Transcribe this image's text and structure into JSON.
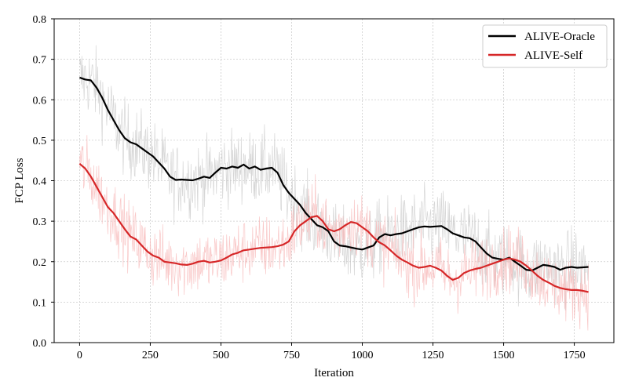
{
  "chart_data": {
    "type": "line",
    "title": "",
    "xlabel": "Iteration",
    "ylabel": "FCP Loss",
    "xlim": [
      -90,
      1890
    ],
    "ylim": [
      0,
      0.8
    ],
    "xticks": [
      0,
      250,
      500,
      750,
      1000,
      1250,
      1500,
      1750
    ],
    "yticks": [
      0.0,
      0.1,
      0.2,
      0.3,
      0.4,
      0.5,
      0.6,
      0.7,
      0.8
    ],
    "ytick_labels": [
      "0.0",
      "0.1",
      "0.2",
      "0.3",
      "0.4",
      "0.5",
      "0.6",
      "0.7",
      "0.8"
    ],
    "grid": true,
    "legend_position": "top-right",
    "series": [
      {
        "name": "ALIVE-Oracle",
        "color": "#000000",
        "raw_color": "#c8c8c8",
        "smoothed": [
          [
            0,
            0.655
          ],
          [
            20,
            0.65
          ],
          [
            40,
            0.648
          ],
          [
            60,
            0.63
          ],
          [
            80,
            0.605
          ],
          [
            100,
            0.575
          ],
          [
            120,
            0.55
          ],
          [
            140,
            0.525
          ],
          [
            160,
            0.505
          ],
          [
            180,
            0.495
          ],
          [
            200,
            0.49
          ],
          [
            220,
            0.48
          ],
          [
            240,
            0.47
          ],
          [
            260,
            0.46
          ],
          [
            280,
            0.445
          ],
          [
            300,
            0.43
          ],
          [
            320,
            0.41
          ],
          [
            340,
            0.402
          ],
          [
            360,
            0.403
          ],
          [
            380,
            0.402
          ],
          [
            400,
            0.401
          ],
          [
            420,
            0.405
          ],
          [
            440,
            0.41
          ],
          [
            460,
            0.407
          ],
          [
            480,
            0.42
          ],
          [
            500,
            0.432
          ],
          [
            520,
            0.43
          ],
          [
            540,
            0.435
          ],
          [
            560,
            0.432
          ],
          [
            580,
            0.44
          ],
          [
            600,
            0.43
          ],
          [
            620,
            0.435
          ],
          [
            640,
            0.427
          ],
          [
            660,
            0.43
          ],
          [
            680,
            0.432
          ],
          [
            700,
            0.42
          ],
          [
            720,
            0.39
          ],
          [
            740,
            0.37
          ],
          [
            760,
            0.355
          ],
          [
            780,
            0.34
          ],
          [
            800,
            0.32
          ],
          [
            820,
            0.305
          ],
          [
            840,
            0.29
          ],
          [
            860,
            0.285
          ],
          [
            880,
            0.275
          ],
          [
            900,
            0.25
          ],
          [
            920,
            0.24
          ],
          [
            940,
            0.238
          ],
          [
            960,
            0.235
          ],
          [
            980,
            0.232
          ],
          [
            1000,
            0.23
          ],
          [
            1020,
            0.235
          ],
          [
            1040,
            0.24
          ],
          [
            1060,
            0.26
          ],
          [
            1080,
            0.268
          ],
          [
            1100,
            0.265
          ],
          [
            1120,
            0.268
          ],
          [
            1140,
            0.27
          ],
          [
            1160,
            0.275
          ],
          [
            1180,
            0.28
          ],
          [
            1200,
            0.285
          ],
          [
            1220,
            0.287
          ],
          [
            1240,
            0.286
          ],
          [
            1260,
            0.287
          ],
          [
            1280,
            0.288
          ],
          [
            1300,
            0.28
          ],
          [
            1320,
            0.27
          ],
          [
            1340,
            0.265
          ],
          [
            1360,
            0.26
          ],
          [
            1380,
            0.258
          ],
          [
            1400,
            0.25
          ],
          [
            1420,
            0.235
          ],
          [
            1440,
            0.22
          ],
          [
            1460,
            0.21
          ],
          [
            1480,
            0.207
          ],
          [
            1500,
            0.205
          ],
          [
            1520,
            0.21
          ],
          [
            1540,
            0.2
          ],
          [
            1560,
            0.19
          ],
          [
            1580,
            0.18
          ],
          [
            1600,
            0.178
          ],
          [
            1620,
            0.185
          ],
          [
            1640,
            0.192
          ],
          [
            1660,
            0.19
          ],
          [
            1680,
            0.187
          ],
          [
            1700,
            0.18
          ],
          [
            1720,
            0.185
          ],
          [
            1740,
            0.187
          ],
          [
            1760,
            0.185
          ],
          [
            1780,
            0.186
          ],
          [
            1800,
            0.187
          ]
        ]
      },
      {
        "name": "ALIVE-Self",
        "color": "#d62728",
        "raw_color": "#f7b6b6",
        "smoothed": [
          [
            0,
            0.442
          ],
          [
            20,
            0.43
          ],
          [
            40,
            0.41
          ],
          [
            60,
            0.385
          ],
          [
            80,
            0.36
          ],
          [
            100,
            0.335
          ],
          [
            120,
            0.32
          ],
          [
            140,
            0.3
          ],
          [
            160,
            0.28
          ],
          [
            180,
            0.262
          ],
          [
            200,
            0.255
          ],
          [
            220,
            0.24
          ],
          [
            240,
            0.225
          ],
          [
            260,
            0.215
          ],
          [
            280,
            0.21
          ],
          [
            300,
            0.2
          ],
          [
            320,
            0.198
          ],
          [
            340,
            0.196
          ],
          [
            360,
            0.193
          ],
          [
            380,
            0.192
          ],
          [
            400,
            0.195
          ],
          [
            420,
            0.2
          ],
          [
            440,
            0.202
          ],
          [
            460,
            0.198
          ],
          [
            480,
            0.2
          ],
          [
            500,
            0.203
          ],
          [
            520,
            0.21
          ],
          [
            540,
            0.218
          ],
          [
            560,
            0.222
          ],
          [
            580,
            0.228
          ],
          [
            600,
            0.23
          ],
          [
            620,
            0.232
          ],
          [
            640,
            0.234
          ],
          [
            660,
            0.235
          ],
          [
            680,
            0.236
          ],
          [
            700,
            0.238
          ],
          [
            720,
            0.242
          ],
          [
            740,
            0.25
          ],
          [
            760,
            0.275
          ],
          [
            780,
            0.29
          ],
          [
            800,
            0.3
          ],
          [
            820,
            0.31
          ],
          [
            840,
            0.313
          ],
          [
            860,
            0.3
          ],
          [
            880,
            0.28
          ],
          [
            900,
            0.275
          ],
          [
            920,
            0.28
          ],
          [
            940,
            0.29
          ],
          [
            960,
            0.298
          ],
          [
            980,
            0.295
          ],
          [
            1000,
            0.285
          ],
          [
            1020,
            0.275
          ],
          [
            1040,
            0.26
          ],
          [
            1060,
            0.248
          ],
          [
            1080,
            0.24
          ],
          [
            1100,
            0.228
          ],
          [
            1120,
            0.215
          ],
          [
            1140,
            0.205
          ],
          [
            1160,
            0.198
          ],
          [
            1180,
            0.19
          ],
          [
            1200,
            0.185
          ],
          [
            1220,
            0.187
          ],
          [
            1240,
            0.19
          ],
          [
            1260,
            0.185
          ],
          [
            1280,
            0.178
          ],
          [
            1300,
            0.165
          ],
          [
            1320,
            0.155
          ],
          [
            1340,
            0.16
          ],
          [
            1360,
            0.172
          ],
          [
            1380,
            0.178
          ],
          [
            1400,
            0.182
          ],
          [
            1420,
            0.185
          ],
          [
            1440,
            0.19
          ],
          [
            1460,
            0.195
          ],
          [
            1480,
            0.2
          ],
          [
            1500,
            0.205
          ],
          [
            1520,
            0.208
          ],
          [
            1540,
            0.205
          ],
          [
            1560,
            0.2
          ],
          [
            1580,
            0.19
          ],
          [
            1600,
            0.178
          ],
          [
            1620,
            0.165
          ],
          [
            1640,
            0.155
          ],
          [
            1660,
            0.148
          ],
          [
            1680,
            0.14
          ],
          [
            1700,
            0.135
          ],
          [
            1720,
            0.132
          ],
          [
            1740,
            0.13
          ],
          [
            1760,
            0.13
          ],
          [
            1780,
            0.128
          ],
          [
            1800,
            0.125
          ]
        ]
      }
    ]
  }
}
